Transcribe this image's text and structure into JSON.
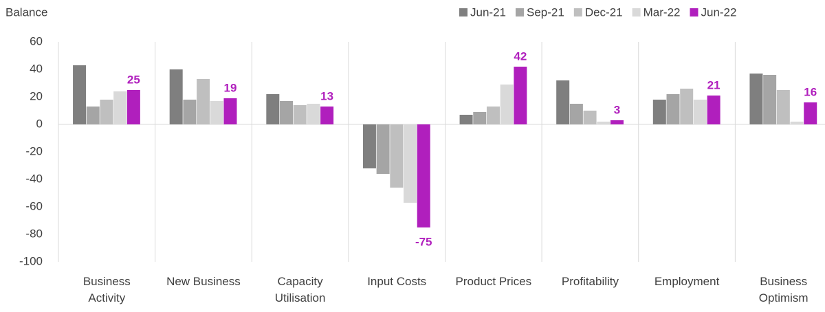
{
  "chart_data": {
    "type": "bar",
    "y_axis_label": "Balance",
    "categories": [
      "Business Activity",
      "New Business",
      "Capacity Utilisation",
      "Input Costs",
      "Product Prices",
      "Profitability",
      "Employment",
      "Business Optimism"
    ],
    "series": [
      {
        "name": "Jun-21",
        "color": "#7f7f7f",
        "values": [
          43,
          40,
          22,
          -32,
          7,
          32,
          18,
          37
        ]
      },
      {
        "name": "Sep-21",
        "color": "#a5a5a5",
        "values": [
          13,
          18,
          17,
          -36,
          9,
          15,
          22,
          36
        ]
      },
      {
        "name": "Dec-21",
        "color": "#bfbfbf",
        "values": [
          18,
          33,
          14,
          -46,
          13,
          10,
          26,
          25
        ]
      },
      {
        "name": "Mar-22",
        "color": "#d9d9d9",
        "values": [
          24,
          17,
          15,
          -57,
          29,
          2,
          18,
          2
        ]
      },
      {
        "name": "Jun-22",
        "color": "#b01fbd",
        "values": [
          25,
          19,
          13,
          -75,
          42,
          3,
          21,
          16
        ],
        "data_labels": true
      }
    ],
    "ylim": [
      -100,
      60
    ],
    "yticks": [
      -100,
      -80,
      -60,
      -40,
      -20,
      0,
      20,
      40,
      60
    ],
    "legend": "top-right"
  }
}
